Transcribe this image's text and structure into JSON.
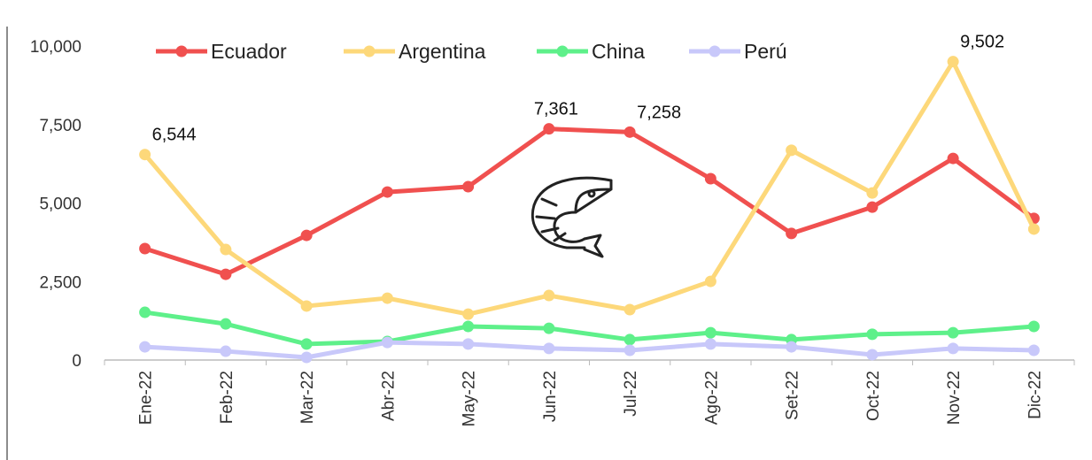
{
  "chart_data": {
    "type": "line",
    "categories": [
      "Ene-22",
      "Feb-22",
      "Mar-22",
      "Abr-22",
      "May-22",
      "Jun-22",
      "Jul-22",
      "Ago-22",
      "Set-22",
      "Oct-22",
      "Nov-22",
      "Dic-22"
    ],
    "series": [
      {
        "name": "Ecuador",
        "color": "#f0504f",
        "values": [
          3550,
          2730,
          3970,
          5350,
          5520,
          7361,
          7258,
          5775,
          4030,
          4870,
          6420,
          4510
        ],
        "value_labels": [
          null,
          null,
          null,
          null,
          null,
          "7,361",
          "7,258",
          null,
          null,
          null,
          null,
          null
        ]
      },
      {
        "name": "Argentina",
        "color": "#fdd87a",
        "values": [
          6544,
          3520,
          1720,
          1970,
          1460,
          2055,
          1605,
          2505,
          6680,
          5320,
          9502,
          4170
        ],
        "value_labels": [
          "6,544",
          null,
          null,
          null,
          null,
          null,
          null,
          null,
          null,
          null,
          "9,502",
          null
        ]
      },
      {
        "name": "China",
        "color": "#5ef08a",
        "values": [
          1520,
          1150,
          510,
          590,
          1070,
          1010,
          650,
          870,
          650,
          820,
          870,
          1070
        ]
      },
      {
        "name": "Perú",
        "color": "#c8c8fa",
        "values": [
          420,
          280,
          85,
          560,
          510,
          370,
          310,
          510,
          420,
          170,
          370,
          310
        ]
      }
    ],
    "ylim": [
      0,
      10000
    ],
    "yticks": [
      0,
      {
        "value": 2500,
        "label": "2,500"
      },
      {
        "value": 5000,
        "label": "5,000"
      },
      {
        "value": 7500,
        "label": "7,500"
      },
      {
        "value": 10000,
        "label": "10,000"
      }
    ],
    "legend": "top"
  }
}
